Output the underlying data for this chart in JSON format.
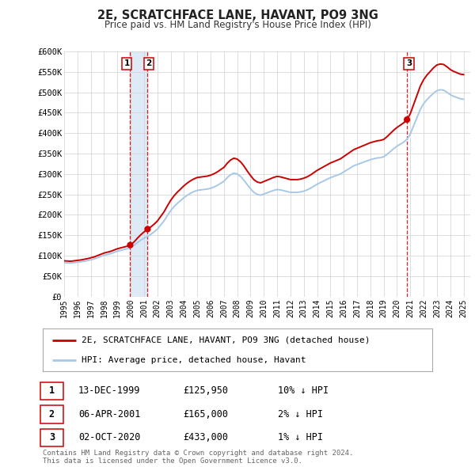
{
  "title": "2E, SCRATCHFACE LANE, HAVANT, PO9 3NG",
  "subtitle": "Price paid vs. HM Land Registry's House Price Index (HPI)",
  "legend_line1": "2E, SCRATCHFACE LANE, HAVANT, PO9 3NG (detached house)",
  "legend_line2": "HPI: Average price, detached house, Havant",
  "sale_color": "#cc0000",
  "hpi_color": "#a8c8e8",
  "background_color": "#ffffff",
  "plot_bg_color": "#ffffff",
  "grid_color": "#d0d0d0",
  "ylim": [
    0,
    600000
  ],
  "yticks": [
    0,
    50000,
    100000,
    150000,
    200000,
    250000,
    300000,
    350000,
    400000,
    450000,
    500000,
    550000,
    600000
  ],
  "ytick_labels": [
    "£0",
    "£50K",
    "£100K",
    "£150K",
    "£200K",
    "£250K",
    "£300K",
    "£350K",
    "£400K",
    "£450K",
    "£500K",
    "£550K",
    "£600K"
  ],
  "sale_dates": [
    1999.96,
    2001.27,
    2020.75
  ],
  "sale_prices": [
    125950,
    165000,
    433000
  ],
  "sale_labels": [
    "1",
    "2",
    "3"
  ],
  "shade_x1": 1999.96,
  "shade_x2": 2001.27,
  "shade_color": "#deeaf5",
  "vline_color": "#cc0000",
  "vline_style": "--",
  "footnote": "Contains HM Land Registry data © Crown copyright and database right 2024.\nThis data is licensed under the Open Government Licence v3.0.",
  "table_rows": [
    [
      "1",
      "13-DEC-1999",
      "£125,950",
      "10% ↓ HPI"
    ],
    [
      "2",
      "06-APR-2001",
      "£165,000",
      "2% ↓ HPI"
    ],
    [
      "3",
      "02-OCT-2020",
      "£433,000",
      "1% ↓ HPI"
    ]
  ],
  "xmin": 1995.0,
  "xmax": 2025.5,
  "xtick_years": [
    1995,
    1996,
    1997,
    1998,
    1999,
    2000,
    2001,
    2002,
    2003,
    2004,
    2005,
    2006,
    2007,
    2008,
    2009,
    2010,
    2011,
    2012,
    2013,
    2014,
    2015,
    2016,
    2017,
    2018,
    2019,
    2020,
    2021,
    2022,
    2023,
    2024,
    2025
  ],
  "hpi_years": [
    1995.0,
    1995.25,
    1995.5,
    1995.75,
    1996.0,
    1996.25,
    1996.5,
    1996.75,
    1997.0,
    1997.25,
    1997.5,
    1997.75,
    1998.0,
    1998.25,
    1998.5,
    1998.75,
    1999.0,
    1999.25,
    1999.5,
    1999.75,
    2000.0,
    2000.25,
    2000.5,
    2000.75,
    2001.0,
    2001.25,
    2001.5,
    2001.75,
    2002.0,
    2002.25,
    2002.5,
    2002.75,
    2003.0,
    2003.25,
    2003.5,
    2003.75,
    2004.0,
    2004.25,
    2004.5,
    2004.75,
    2005.0,
    2005.25,
    2005.5,
    2005.75,
    2006.0,
    2006.25,
    2006.5,
    2006.75,
    2007.0,
    2007.25,
    2007.5,
    2007.75,
    2008.0,
    2008.25,
    2008.5,
    2008.75,
    2009.0,
    2009.25,
    2009.5,
    2009.75,
    2010.0,
    2010.25,
    2010.5,
    2010.75,
    2011.0,
    2011.25,
    2011.5,
    2011.75,
    2012.0,
    2012.25,
    2012.5,
    2012.75,
    2013.0,
    2013.25,
    2013.5,
    2013.75,
    2014.0,
    2014.25,
    2014.5,
    2014.75,
    2015.0,
    2015.25,
    2015.5,
    2015.75,
    2016.0,
    2016.25,
    2016.5,
    2016.75,
    2017.0,
    2017.25,
    2017.5,
    2017.75,
    2018.0,
    2018.25,
    2018.5,
    2018.75,
    2019.0,
    2019.25,
    2019.5,
    2019.75,
    2020.0,
    2020.25,
    2020.5,
    2020.75,
    2021.0,
    2021.25,
    2021.5,
    2021.75,
    2022.0,
    2022.25,
    2022.5,
    2022.75,
    2023.0,
    2023.25,
    2023.5,
    2023.75,
    2024.0,
    2024.25,
    2024.5,
    2024.75,
    2025.0
  ],
  "hpi_values": [
    83000,
    82500,
    82000,
    83000,
    84000,
    85000,
    86500,
    88000,
    90000,
    92000,
    95000,
    98000,
    101000,
    103000,
    105000,
    108000,
    111000,
    113000,
    115000,
    117000,
    120000,
    125000,
    132000,
    138000,
    143000,
    147000,
    152000,
    158000,
    165000,
    175000,
    185000,
    198000,
    210000,
    220000,
    228000,
    235000,
    242000,
    248000,
    253000,
    257000,
    260000,
    261000,
    262000,
    263000,
    265000,
    268000,
    272000,
    277000,
    282000,
    291000,
    298000,
    302000,
    300000,
    294000,
    285000,
    274000,
    264000,
    255000,
    250000,
    248000,
    251000,
    254000,
    257000,
    260000,
    262000,
    261000,
    259000,
    257000,
    255000,
    255000,
    255000,
    256000,
    258000,
    261000,
    265000,
    270000,
    275000,
    279000,
    283000,
    287000,
    291000,
    294000,
    297000,
    300000,
    305000,
    310000,
    315000,
    320000,
    323000,
    326000,
    329000,
    332000,
    335000,
    337000,
    339000,
    340000,
    342000,
    348000,
    355000,
    362000,
    368000,
    373000,
    378000,
    385000,
    398000,
    418000,
    438000,
    458000,
    472000,
    482000,
    490000,
    498000,
    504000,
    506000,
    505000,
    500000,
    494000,
    490000,
    487000,
    484000,
    483000
  ]
}
